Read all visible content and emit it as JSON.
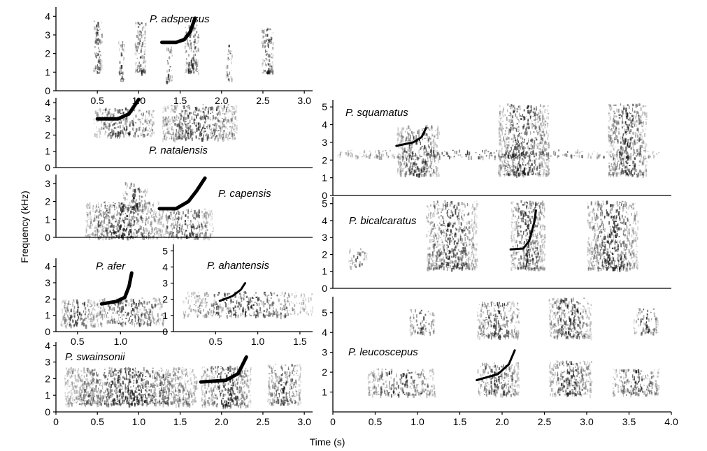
{
  "figure": {
    "ylabel": "Frequency (kHz)",
    "xlabel": "Time (s)"
  },
  "chart_data": [
    {
      "type": "spectrogram",
      "species": "P. adspersus",
      "xlim": [
        0,
        3.1
      ],
      "ylim": [
        0,
        4.5
      ],
      "yticks": [
        0,
        1,
        2,
        3,
        4
      ],
      "xticks": [
        0.5,
        1.0,
        1.5,
        2.0,
        2.5,
        3.0
      ],
      "trace": [
        [
          1.28,
          2.6
        ],
        [
          1.45,
          2.6
        ],
        [
          1.55,
          2.75
        ],
        [
          1.62,
          3.15
        ],
        [
          1.68,
          3.9
        ]
      ],
      "energy": [
        {
          "x": [
            0.45,
            0.55
          ],
          "y": [
            1.0,
            3.8
          ],
          "d": 0.6
        },
        {
          "x": [
            0.75,
            0.82
          ],
          "y": [
            0.5,
            2.8
          ],
          "d": 0.45
        },
        {
          "x": [
            0.95,
            1.08
          ],
          "y": [
            1.0,
            3.8
          ],
          "d": 0.6
        },
        {
          "x": [
            1.32,
            1.4
          ],
          "y": [
            0.5,
            2.6
          ],
          "d": 0.4
        },
        {
          "x": [
            1.55,
            1.72
          ],
          "y": [
            1.0,
            3.6
          ],
          "d": 0.6
        },
        {
          "x": [
            2.05,
            2.12
          ],
          "y": [
            0.6,
            2.6
          ],
          "d": 0.35
        },
        {
          "x": [
            2.48,
            2.62
          ],
          "y": [
            1.0,
            3.4
          ],
          "d": 0.55
        }
      ]
    },
    {
      "type": "spectrogram",
      "species": "P. natalensis",
      "xlim": [
        0,
        3.1
      ],
      "ylim": [
        0,
        4.3
      ],
      "yticks": [
        0,
        1,
        2,
        3,
        4
      ],
      "xticks": [],
      "trace": [
        [
          0.5,
          3.0
        ],
        [
          0.75,
          3.0
        ],
        [
          0.88,
          3.3
        ],
        [
          1.0,
          4.2
        ]
      ],
      "energy": [
        {
          "x": [
            0.45,
            1.18
          ],
          "y": [
            2.0,
            3.7
          ],
          "d": 0.5
        },
        {
          "x": [
            1.28,
            2.18
          ],
          "y": [
            1.8,
            3.9
          ],
          "d": 0.65
        }
      ]
    },
    {
      "type": "spectrogram",
      "species": "P. capensis",
      "xlim": [
        0,
        3.1
      ],
      "ylim": [
        0,
        3.5
      ],
      "yticks": [
        0,
        1,
        2,
        3
      ],
      "xticks": [],
      "trace": [
        [
          1.25,
          1.6
        ],
        [
          1.45,
          1.6
        ],
        [
          1.6,
          2.0
        ],
        [
          1.7,
          2.6
        ],
        [
          1.8,
          3.3
        ]
      ],
      "energy": [
        {
          "x": [
            0.35,
            1.25
          ],
          "y": [
            0.0,
            2.0
          ],
          "d": 0.6
        },
        {
          "x": [
            0.8,
            1.1
          ],
          "y": [
            1.5,
            3.1
          ],
          "d": 0.45
        },
        {
          "x": [
            1.25,
            1.9
          ],
          "y": [
            0.0,
            1.6
          ],
          "d": 0.55
        }
      ]
    },
    {
      "type": "spectrogram",
      "species": "P. afer",
      "xlim": [
        0.25,
        1.55
      ],
      "ylim": [
        0,
        4.5
      ],
      "yticks": [
        0,
        1,
        2,
        3,
        4
      ],
      "xticks": [
        0.5,
        1.0
      ],
      "trace": [
        [
          0.78,
          1.7
        ],
        [
          0.95,
          1.85
        ],
        [
          1.05,
          2.1
        ],
        [
          1.1,
          2.8
        ],
        [
          1.13,
          3.6
        ]
      ],
      "energy": [
        {
          "x": [
            0.3,
            0.7
          ],
          "y": [
            0.4,
            2.0
          ],
          "d": 0.6
        },
        {
          "x": [
            0.7,
            1.5
          ],
          "y": [
            0.5,
            2.1
          ],
          "d": 0.55
        }
      ]
    },
    {
      "type": "spectrogram",
      "species": "P. ahantensis",
      "xlim": [
        0,
        1.65
      ],
      "ylim": [
        0,
        5.4
      ],
      "yticks": [
        0,
        1,
        2,
        3,
        4,
        5
      ],
      "xticks": [
        0.5,
        1.0,
        1.5
      ],
      "trace": [
        [
          0.55,
          1.9
        ],
        [
          0.7,
          2.2
        ],
        [
          0.8,
          2.6
        ],
        [
          0.85,
          3.0
        ]
      ],
      "energy": [
        {
          "x": [
            0.1,
            1.65
          ],
          "y": [
            1.0,
            2.5
          ],
          "d": 0.4
        }
      ]
    },
    {
      "type": "spectrogram",
      "species": "P. swainsonii",
      "xlim": [
        0,
        3.1
      ],
      "ylim": [
        0,
        4.2
      ],
      "yticks": [
        0,
        1,
        2,
        3,
        4
      ],
      "xticks": [
        0,
        0.5,
        1.0,
        1.5,
        2.0,
        2.5,
        3.0
      ],
      "trace": [
        [
          1.75,
          1.8
        ],
        [
          2.05,
          1.9
        ],
        [
          2.2,
          2.3
        ],
        [
          2.3,
          3.3
        ]
      ],
      "energy": [
        {
          "x": [
            0.1,
            1.7
          ],
          "y": [
            0.5,
            2.7
          ],
          "d": 0.7
        },
        {
          "x": [
            1.75,
            2.35
          ],
          "y": [
            0.4,
            2.8
          ],
          "d": 0.6
        },
        {
          "x": [
            2.55,
            2.95
          ],
          "y": [
            0.5,
            2.9
          ],
          "d": 0.55
        }
      ]
    },
    {
      "type": "spectrogram",
      "species": "P. squamatus",
      "xlim": [
        0,
        4.0
      ],
      "ylim": [
        0,
        5.4
      ],
      "yticks": [
        0,
        1,
        2,
        3,
        4,
        5
      ],
      "xticks": [],
      "trace": [
        [
          0.75,
          2.8
        ],
        [
          0.95,
          3.0
        ],
        [
          1.05,
          3.3
        ],
        [
          1.1,
          3.8
        ]
      ],
      "energy": [
        {
          "x": [
            0.05,
            3.85
          ],
          "y": [
            2.2,
            2.6
          ],
          "d": 0.35
        },
        {
          "x": [
            0.75,
            1.25
          ],
          "y": [
            1.2,
            4.0
          ],
          "d": 0.55
        },
        {
          "x": [
            1.95,
            2.55
          ],
          "y": [
            1.2,
            5.2
          ],
          "d": 0.6
        },
        {
          "x": [
            3.25,
            3.7
          ],
          "y": [
            1.2,
            5.2
          ],
          "d": 0.6
        }
      ]
    },
    {
      "type": "spectrogram",
      "species": "P. bicalcaratus",
      "xlim": [
        0,
        4.0
      ],
      "ylim": [
        0,
        5.4
      ],
      "yticks": [
        0,
        1,
        2,
        3,
        4,
        5
      ],
      "xticks": [],
      "trace": [
        [
          2.1,
          2.3
        ],
        [
          2.25,
          2.35
        ],
        [
          2.32,
          2.8
        ],
        [
          2.38,
          3.9
        ],
        [
          2.4,
          4.6
        ]
      ],
      "energy": [
        {
          "x": [
            0.18,
            0.4
          ],
          "y": [
            1.3,
            2.4
          ],
          "d": 0.35
        },
        {
          "x": [
            1.1,
            1.7
          ],
          "y": [
            1.2,
            5.2
          ],
          "d": 0.55
        },
        {
          "x": [
            2.1,
            2.5
          ],
          "y": [
            1.2,
            5.2
          ],
          "d": 0.6
        },
        {
          "x": [
            3.0,
            3.6
          ],
          "y": [
            1.2,
            5.2
          ],
          "d": 0.55
        }
      ]
    },
    {
      "type": "spectrogram",
      "species": "P. leucoscepus",
      "xlim": [
        0,
        4.0
      ],
      "ylim": [
        0,
        5.8
      ],
      "yticks": [
        1,
        2,
        3,
        4,
        5
      ],
      "xticks": [
        0,
        0.5,
        1.0,
        1.5,
        2.0,
        2.5,
        3.0,
        3.5,
        4.0
      ],
      "trace": [
        [
          1.7,
          1.6
        ],
        [
          1.95,
          1.9
        ],
        [
          2.08,
          2.4
        ],
        [
          2.15,
          3.1
        ]
      ],
      "energy": [
        {
          "x": [
            0.4,
            1.2
          ],
          "y": [
            0.9,
            2.2
          ],
          "d": 0.45
        },
        {
          "x": [
            0.9,
            1.2
          ],
          "y": [
            4.0,
            5.2
          ],
          "d": 0.4
        },
        {
          "x": [
            1.7,
            2.2
          ],
          "y": [
            0.9,
            2.5
          ],
          "d": 0.6
        },
        {
          "x": [
            1.7,
            2.2
          ],
          "y": [
            3.8,
            5.6
          ],
          "d": 0.55
        },
        {
          "x": [
            2.55,
            3.05
          ],
          "y": [
            0.9,
            2.6
          ],
          "d": 0.6
        },
        {
          "x": [
            2.55,
            3.05
          ],
          "y": [
            3.8,
            6.0
          ],
          "d": 0.6
        },
        {
          "x": [
            3.3,
            3.85
          ],
          "y": [
            0.9,
            2.2
          ],
          "d": 0.5
        },
        {
          "x": [
            3.55,
            3.85
          ],
          "y": [
            4.0,
            5.3
          ],
          "d": 0.4
        }
      ]
    }
  ]
}
